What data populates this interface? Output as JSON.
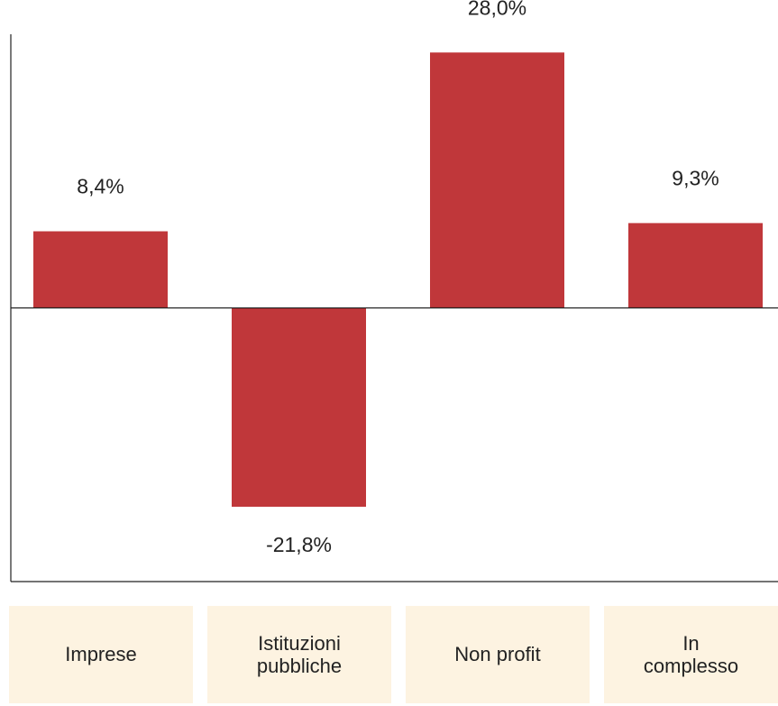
{
  "chart_data": {
    "type": "bar",
    "categories": [
      "Imprese",
      "Istituzioni pubbliche",
      "Non profit",
      "In complesso"
    ],
    "values": [
      8.4,
      -21.8,
      28.0,
      9.3
    ],
    "value_labels": [
      "8,4%",
      "-21,8%",
      "28,0%",
      "9,3%"
    ],
    "color": "#c0373a",
    "ylim": [
      -30,
      30
    ]
  }
}
